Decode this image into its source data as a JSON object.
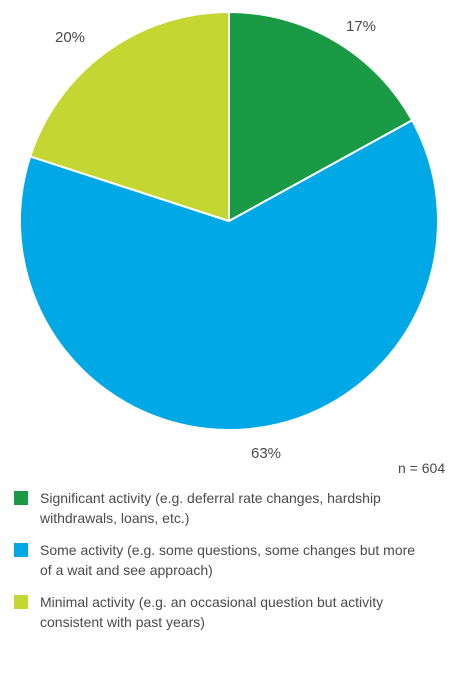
{
  "chart_data": {
    "type": "pie",
    "title": "",
    "slices": [
      {
        "name": "Significant activity (e.g. deferral rate changes, hardship withdrawals, loans, etc.)",
        "value": 17,
        "label": "17%",
        "color": "#1a9a45"
      },
      {
        "name": "Some activity (e.g. some questions, some changes but more of a wait and see approach)",
        "value": 63,
        "label": "63%",
        "color": "#00a9e6"
      },
      {
        "name": "Minimal activity (e.g. an occasional question but activity consistent with past years)",
        "value": 20,
        "label": "20%",
        "color": "#c3d631"
      }
    ],
    "start_angle_deg": 0,
    "direction": "clockwise",
    "legend_position": "bottom",
    "annotation": "n = 604"
  },
  "legend": {
    "items": [
      {
        "line1": "Significant activity (e.g. deferral rate changes, hardship",
        "line2": "withdrawals, loans, etc.)",
        "color": "#1a9a45"
      },
      {
        "line1": "Some activity (e.g. some questions, some changes but more",
        "line2": "of a wait and see approach)",
        "color": "#00a9e6"
      },
      {
        "line1": "Minimal activity (e.g. an occasional question but activity",
        "line2": "consistent with past years)",
        "color": "#c3d631"
      }
    ]
  }
}
